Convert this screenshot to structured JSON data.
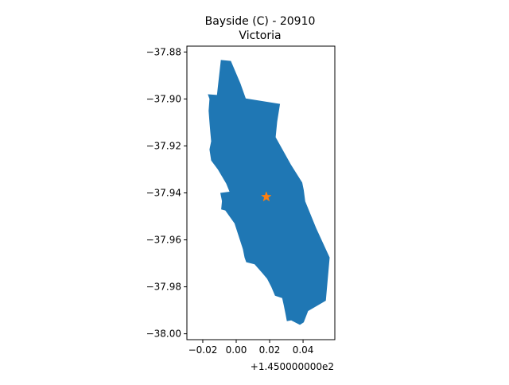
{
  "chart_data": {
    "type": "map",
    "title": "Bayside (C) - 20910",
    "subtitle": "Victoria",
    "x_offset_label": "+1.450000000e2",
    "x_ticks": [
      {
        "value": -0.02,
        "label": "−0.02"
      },
      {
        "value": 0.0,
        "label": "0.00"
      },
      {
        "value": 0.02,
        "label": "0.02"
      },
      {
        "value": 0.04,
        "label": "0.04"
      }
    ],
    "y_ticks": [
      {
        "value": -37.88,
        "label": "−37.88"
      },
      {
        "value": -37.9,
        "label": "−37.90"
      },
      {
        "value": -37.92,
        "label": "−37.92"
      },
      {
        "value": -37.94,
        "label": "−37.94"
      },
      {
        "value": -37.96,
        "label": "−37.96"
      },
      {
        "value": -37.98,
        "label": "−37.98"
      },
      {
        "value": -38.0,
        "label": "−38.00"
      }
    ],
    "xlim": [
      -0.0295,
      0.059
    ],
    "ylim": [
      -38.0025,
      -37.8775
    ],
    "region": {
      "fill_color": "#1f77b4",
      "boundary": [
        [
          -0.0092,
          -37.8834
        ],
        [
          -0.0032,
          -37.8838
        ],
        [
          0.0025,
          -37.8934
        ],
        [
          0.0057,
          -37.8998
        ],
        [
          0.0262,
          -37.9021
        ],
        [
          0.0245,
          -37.9097
        ],
        [
          0.0236,
          -37.9163
        ],
        [
          0.0328,
          -37.928
        ],
        [
          0.0395,
          -37.9356
        ],
        [
          0.0404,
          -37.9387
        ],
        [
          0.0413,
          -37.9436
        ],
        [
          0.0478,
          -37.955
        ],
        [
          0.0559,
          -37.9675
        ],
        [
          0.0536,
          -37.9859
        ],
        [
          0.043,
          -37.9903
        ],
        [
          0.0404,
          -37.9951
        ],
        [
          0.0381,
          -37.9962
        ],
        [
          0.0329,
          -37.9943
        ],
        [
          0.0303,
          -37.9946
        ],
        [
          0.0295,
          -37.9916
        ],
        [
          0.0285,
          -37.988
        ],
        [
          0.0275,
          -37.9848
        ],
        [
          0.0232,
          -37.9838
        ],
        [
          0.021,
          -37.98
        ],
        [
          0.0185,
          -37.9766
        ],
        [
          0.0157,
          -37.9742
        ],
        [
          0.011,
          -37.9704
        ],
        [
          0.006,
          -37.9695
        ],
        [
          0.005,
          -37.9675
        ],
        [
          0.004,
          -37.964
        ],
        [
          -0.001,
          -37.953
        ],
        [
          -0.0065,
          -37.9475
        ],
        [
          -0.009,
          -37.947
        ],
        [
          -0.0085,
          -37.9435
        ],
        [
          -0.0095,
          -37.94
        ],
        [
          -0.004,
          -37.9395
        ],
        [
          -0.006,
          -37.936
        ],
        [
          -0.011,
          -37.93
        ],
        [
          -0.015,
          -37.9262
        ],
        [
          -0.016,
          -37.9215
        ],
        [
          -0.015,
          -37.918
        ],
        [
          -0.0155,
          -37.914
        ],
        [
          -0.016,
          -37.91
        ],
        [
          -0.0165,
          -37.905
        ],
        [
          -0.016,
          -37.9
        ],
        [
          -0.017,
          -37.898
        ],
        [
          -0.0115,
          -37.8983
        ],
        [
          -0.0092,
          -37.8834
        ]
      ]
    },
    "marker": {
      "shape": "star",
      "color": "#ff7f0e",
      "x": 0.018,
      "y": -37.9417
    }
  }
}
